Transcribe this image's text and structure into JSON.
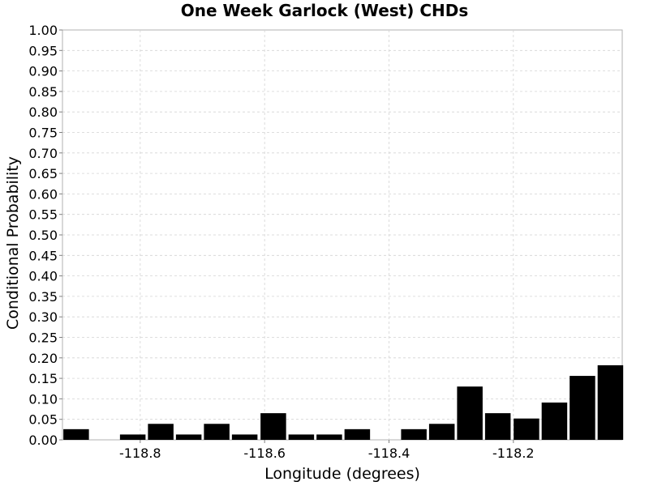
{
  "chart_data": {
    "type": "bar",
    "title": "One Week Garlock (West) CHDs",
    "xlabel": "Longitude (degrees)",
    "ylabel": "Conditional Probability",
    "xlim": [
      -118.925,
      -118.025
    ],
    "ylim": [
      0,
      1
    ],
    "bin_width": 0.045,
    "x_ticks": [
      -118.8,
      -118.6,
      -118.4,
      -118.2
    ],
    "x_tick_labels": [
      "-118.8",
      "-118.6",
      "-118.4",
      "-118.2"
    ],
    "y_ticks": [
      0,
      0.05,
      0.1,
      0.15,
      0.2,
      0.25,
      0.3,
      0.35,
      0.4,
      0.45,
      0.5,
      0.55,
      0.6,
      0.65,
      0.7,
      0.75,
      0.8,
      0.85,
      0.9,
      0.95,
      1.0
    ],
    "y_tick_labels": [
      "0.00",
      "0.05",
      "0.10",
      "0.15",
      "0.20",
      "0.25",
      "0.30",
      "0.35",
      "0.40",
      "0.45",
      "0.50",
      "0.55",
      "0.60",
      "0.65",
      "0.70",
      "0.75",
      "0.80",
      "0.85",
      "0.90",
      "0.95",
      "1.00"
    ],
    "grid": true,
    "bar_color": "#000000",
    "bins": [
      {
        "x": -118.903,
        "value": 0.026
      },
      {
        "x": -118.858,
        "value": 0.0
      },
      {
        "x": -118.812,
        "value": 0.013
      },
      {
        "x": -118.767,
        "value": 0.039
      },
      {
        "x": -118.722,
        "value": 0.013
      },
      {
        "x": -118.677,
        "value": 0.039
      },
      {
        "x": -118.632,
        "value": 0.013
      },
      {
        "x": -118.586,
        "value": 0.065
      },
      {
        "x": -118.541,
        "value": 0.013
      },
      {
        "x": -118.496,
        "value": 0.013
      },
      {
        "x": -118.451,
        "value": 0.026
      },
      {
        "x": -118.405,
        "value": 0.0
      },
      {
        "x": -118.36,
        "value": 0.026
      },
      {
        "x": -118.315,
        "value": 0.039
      },
      {
        "x": -118.27,
        "value": 0.13
      },
      {
        "x": -118.225,
        "value": 0.065
      },
      {
        "x": -118.179,
        "value": 0.052
      },
      {
        "x": -118.134,
        "value": 0.091
      },
      {
        "x": -118.089,
        "value": 0.156
      },
      {
        "x": -118.044,
        "value": 0.182
      }
    ]
  }
}
